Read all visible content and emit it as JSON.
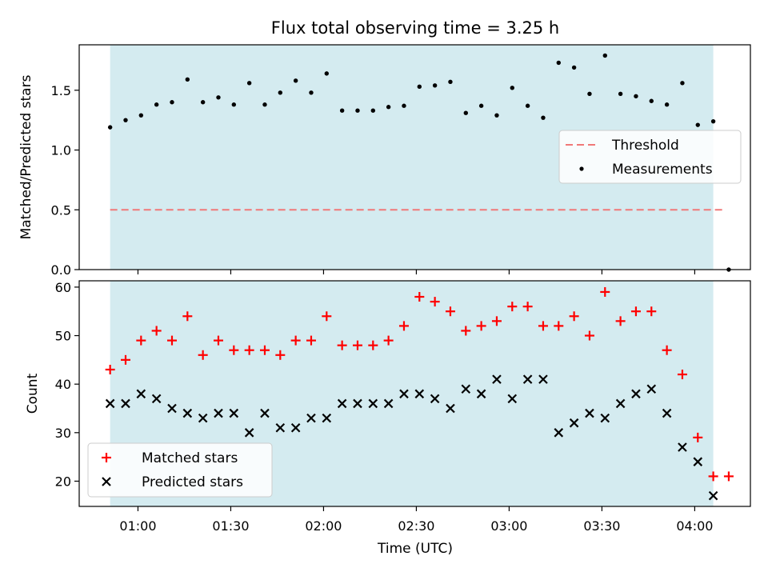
{
  "chart_data": [
    {
      "type": "scatter",
      "title": "Flux total observing time = 3.25 h",
      "xlabel": "",
      "ylabel": "Matched/Predicted stars",
      "ylim": [
        0,
        1.88
      ],
      "yticks": [
        "0.0",
        "0.5",
        "1.0",
        "1.5"
      ],
      "shaded_region": {
        "x0": "00:51",
        "x1": "04:06",
        "color": "#d4ebf0"
      },
      "threshold": {
        "name": "Threshold",
        "y": 0.5,
        "x0": "00:51",
        "x1": "04:09",
        "color": "#f07878"
      },
      "series": [
        {
          "name": "Measurements",
          "color": "#000000",
          "x": [
            "00:51",
            "00:56",
            "01:01",
            "01:06",
            "01:11",
            "01:16",
            "01:21",
            "01:26",
            "01:31",
            "01:36",
            "01:41",
            "01:46",
            "01:51",
            "01:56",
            "02:01",
            "02:06",
            "02:11",
            "02:16",
            "02:21",
            "02:26",
            "02:31",
            "02:36",
            "02:41",
            "02:46",
            "02:51",
            "02:56",
            "03:01",
            "03:06",
            "03:11",
            "03:16",
            "03:21",
            "03:26",
            "03:31",
            "03:36",
            "03:41",
            "03:46",
            "03:51",
            "03:56",
            "04:01",
            "04:06",
            "04:11"
          ],
          "y": [
            1.19,
            1.25,
            1.29,
            1.38,
            1.4,
            1.59,
            1.4,
            1.44,
            1.38,
            1.56,
            1.38,
            1.48,
            1.58,
            1.48,
            1.64,
            1.33,
            1.33,
            1.33,
            1.36,
            1.37,
            1.53,
            1.54,
            1.57,
            1.31,
            1.37,
            1.29,
            1.52,
            1.37,
            1.27,
            1.73,
            1.69,
            1.47,
            1.79,
            1.47,
            1.45,
            1.41,
            1.38,
            1.56,
            1.21,
            1.24,
            0.0
          ]
        }
      ],
      "legend": {
        "entries": [
          "Threshold",
          "Measurements"
        ],
        "position": "center-right"
      }
    },
    {
      "type": "scatter",
      "title": "",
      "xlabel": "Time (UTC)",
      "ylabel": "Count",
      "ylim": [
        14.8,
        61.3
      ],
      "yticks": [
        "20",
        "30",
        "40",
        "50",
        "60"
      ],
      "xticks": [
        "01:00",
        "01:30",
        "02:00",
        "02:30",
        "03:00",
        "03:30",
        "04:00"
      ],
      "shaded_region": {
        "x0": "00:51",
        "x1": "04:06",
        "color": "#d4ebf0"
      },
      "series": [
        {
          "name": "Matched stars",
          "marker": "plus",
          "color": "#ff0000",
          "x": [
            "00:51",
            "00:56",
            "01:01",
            "01:06",
            "01:11",
            "01:16",
            "01:21",
            "01:26",
            "01:31",
            "01:36",
            "01:41",
            "01:46",
            "01:51",
            "01:56",
            "02:01",
            "02:06",
            "02:11",
            "02:16",
            "02:21",
            "02:26",
            "02:31",
            "02:36",
            "02:41",
            "02:46",
            "02:51",
            "02:56",
            "03:01",
            "03:06",
            "03:11",
            "03:16",
            "03:21",
            "03:26",
            "03:31",
            "03:36",
            "03:41",
            "03:46",
            "03:51",
            "03:56",
            "04:01",
            "04:06",
            "04:11"
          ],
          "y": [
            43,
            45,
            49,
            51,
            49,
            54,
            46,
            49,
            47,
            47,
            47,
            46,
            49,
            49,
            54,
            48,
            48,
            48,
            49,
            52,
            58,
            57,
            55,
            51,
            52,
            53,
            56,
            56,
            52,
            52,
            54,
            50,
            59,
            53,
            55,
            55,
            47,
            42,
            29,
            21,
            21
          ]
        },
        {
          "name": "Predicted stars",
          "marker": "x",
          "color": "#000000",
          "x": [
            "00:51",
            "00:56",
            "01:01",
            "01:06",
            "01:11",
            "01:16",
            "01:21",
            "01:26",
            "01:31",
            "01:36",
            "01:41",
            "01:46",
            "01:51",
            "01:56",
            "02:01",
            "02:06",
            "02:11",
            "02:16",
            "02:21",
            "02:26",
            "02:31",
            "02:36",
            "02:41",
            "02:46",
            "02:51",
            "02:56",
            "03:01",
            "03:06",
            "03:11",
            "03:16",
            "03:21",
            "03:26",
            "03:31",
            "03:36",
            "03:41",
            "03:46",
            "03:51",
            "03:56",
            "04:01",
            "04:06"
          ],
          "y": [
            36,
            36,
            38,
            37,
            35,
            34,
            33,
            34,
            34,
            30,
            34,
            31,
            31,
            33,
            33,
            36,
            36,
            36,
            36,
            38,
            38,
            37,
            35,
            39,
            38,
            41,
            37,
            41,
            41,
            30,
            32,
            34,
            33,
            36,
            38,
            39,
            34,
            27,
            24,
            17
          ]
        }
      ],
      "legend": {
        "entries": [
          "Matched stars",
          "Predicted stars"
        ],
        "position": "lower-left"
      }
    }
  ]
}
